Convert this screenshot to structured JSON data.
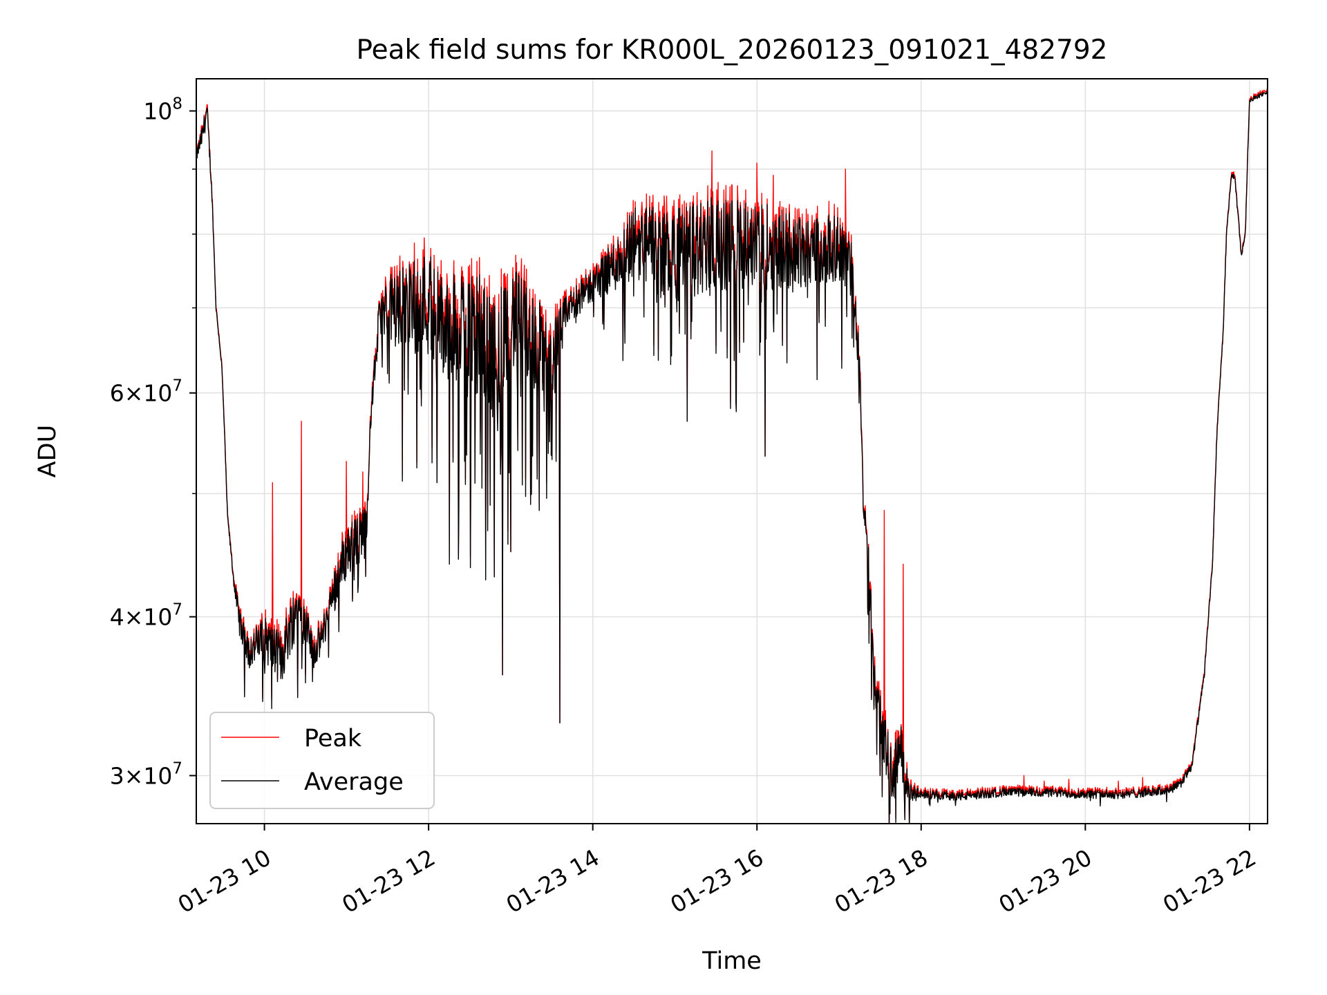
{
  "chart_data": {
    "type": "line",
    "title": "Peak field sums for KR000L_20260123_091021_482792",
    "xlabel": "Time",
    "ylabel": "ADU",
    "yscale": "log",
    "xlim": [
      9.17,
      22.22
    ],
    "ylim": [
      27500000,
      106000000
    ],
    "grid": true,
    "legend_position": "lower-left",
    "x_ticks": [
      {
        "value": 10,
        "label": "01-23 10"
      },
      {
        "value": 12,
        "label": "01-23 12"
      },
      {
        "value": 14,
        "label": "01-23 14"
      },
      {
        "value": 16,
        "label": "01-23 16"
      },
      {
        "value": 18,
        "label": "01-23 18"
      },
      {
        "value": 20,
        "label": "01-23 20"
      },
      {
        "value": 22,
        "label": "01-23 22"
      }
    ],
    "y_ticks": [
      {
        "value": 30000000,
        "mantissa": "3",
        "exponent": "7"
      },
      {
        "value": 40000000,
        "mantissa": "4",
        "exponent": "7"
      },
      {
        "value": 60000000,
        "mantissa": "6",
        "exponent": "7"
      },
      {
        "value": 100000000,
        "mantissa": "",
        "exponent": "8"
      }
    ],
    "y_minor_ticks": [
      50000000,
      70000000,
      80000000,
      90000000
    ],
    "series": [
      {
        "name": "Peak",
        "color": "#ff0000"
      },
      {
        "name": "Average",
        "color": "#000000"
      }
    ],
    "base_profile": {
      "x": [
        9.17,
        9.25,
        9.3,
        9.36,
        9.41,
        9.48,
        9.55,
        9.62,
        9.7,
        9.8,
        10.0,
        10.2,
        10.4,
        10.6,
        10.7,
        10.85,
        11.0,
        11.15,
        11.25,
        11.3,
        11.4,
        11.5,
        11.7,
        12.0,
        12.2,
        12.5,
        12.8,
        13.0,
        13.3,
        13.5,
        13.7,
        14.0,
        14.3,
        14.5,
        15.0,
        15.5,
        16.0,
        16.5,
        17.0,
        17.15,
        17.25,
        17.3,
        17.36,
        17.42,
        17.55,
        17.65,
        17.75,
        17.85,
        18.0,
        18.5,
        19.0,
        19.5,
        20.0,
        20.5,
        21.0,
        21.15,
        21.3,
        21.45,
        21.55,
        21.6,
        21.68,
        21.72,
        21.78,
        21.82,
        21.9,
        21.95,
        22.0,
        22.22
      ],
      "y": [
        92000000,
        96000000,
        100000000,
        86000000,
        70000000,
        63000000,
        48000000,
        43000000,
        39500000,
        37500000,
        38500000,
        37000000,
        41000000,
        37500000,
        38500000,
        42000000,
        45000000,
        46000000,
        48000000,
        58000000,
        68500000,
        70000000,
        70000000,
        71000000,
        67000000,
        69000000,
        64000000,
        69000000,
        66000000,
        63000000,
        70000000,
        73000000,
        76000000,
        79000000,
        77000000,
        79000000,
        78500000,
        78000000,
        78000000,
        75000000,
        64000000,
        48000000,
        44000000,
        36000000,
        32000000,
        30000000,
        31500000,
        29000000,
        29000000,
        28900000,
        29100000,
        29100000,
        29000000,
        29000000,
        29200000,
        29500000,
        30500000,
        36000000,
        44000000,
        55000000,
        67000000,
        80000000,
        89000000,
        88500000,
        77000000,
        80000000,
        102000000,
        103500000
      ],
      "noise": [
        0.01,
        0.02,
        0.02,
        0.01,
        0.005,
        0.005,
        0.005,
        0.01,
        0.025,
        0.03,
        0.04,
        0.05,
        0.05,
        0.03,
        0.03,
        0.04,
        0.05,
        0.05,
        0.03,
        0.02,
        0.04,
        0.06,
        0.08,
        0.1,
        0.1,
        0.11,
        0.11,
        0.1,
        0.09,
        0.08,
        0.03,
        0.03,
        0.05,
        0.07,
        0.09,
        0.09,
        0.08,
        0.07,
        0.06,
        0.05,
        0.04,
        0.04,
        0.04,
        0.04,
        0.05,
        0.05,
        0.05,
        0.02,
        0.008,
        0.008,
        0.008,
        0.008,
        0.008,
        0.008,
        0.008,
        0.008,
        0.008,
        0.006,
        0.006,
        0.006,
        0.006,
        0.006,
        0.006,
        0.006,
        0.006,
        0.006,
        0.004,
        0.004
      ]
    },
    "dips": [
      {
        "x": 12.1,
        "y": 51000000
      },
      {
        "x": 12.8,
        "y": 43000000
      },
      {
        "x": 12.9,
        "y": 36000000
      },
      {
        "x": 13.0,
        "y": 45000000
      },
      {
        "x": 13.35,
        "y": 48500000
      },
      {
        "x": 13.6,
        "y": 33000000
      },
      {
        "x": 15.15,
        "y": 57000000
      },
      {
        "x": 15.75,
        "y": 58000000
      },
      {
        "x": 16.1,
        "y": 53500000
      },
      {
        "x": 17.5,
        "y": 30000000
      },
      {
        "x": 17.62,
        "y": 28000000
      },
      {
        "x": 17.8,
        "y": 27700000
      }
    ],
    "spikes": [
      {
        "x": 10.1,
        "y": 51000000
      },
      {
        "x": 10.45,
        "y": 57000000
      },
      {
        "x": 11.0,
        "y": 53000000
      },
      {
        "x": 11.2,
        "y": 52000000
      },
      {
        "x": 15.45,
        "y": 93000000
      },
      {
        "x": 16.0,
        "y": 91000000
      },
      {
        "x": 16.2,
        "y": 89000000
      },
      {
        "x": 17.08,
        "y": 90000000
      },
      {
        "x": 17.55,
        "y": 48500000
      },
      {
        "x": 17.78,
        "y": 44000000
      },
      {
        "x": 19.25,
        "y": 30000000
      },
      {
        "x": 19.5,
        "y": 29700000
      },
      {
        "x": 19.8,
        "y": 29800000
      },
      {
        "x": 20.4,
        "y": 29700000
      },
      {
        "x": 20.7,
        "y": 29900000
      }
    ]
  }
}
